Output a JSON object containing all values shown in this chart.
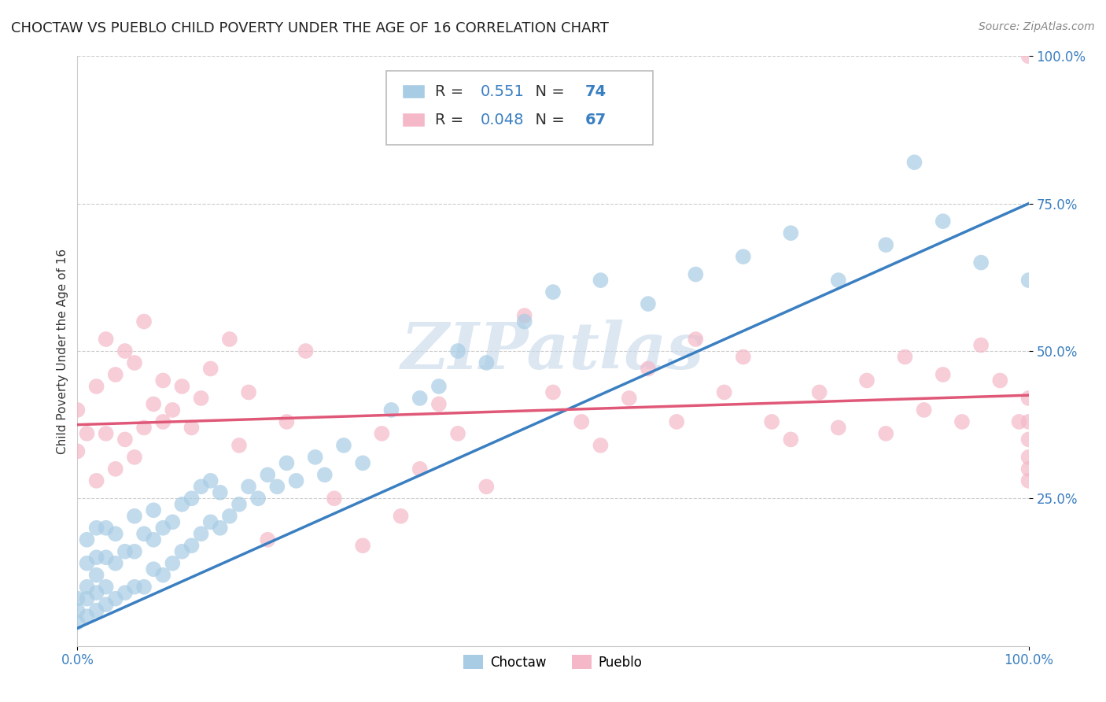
{
  "title": "CHOCTAW VS PUEBLO CHILD POVERTY UNDER THE AGE OF 16 CORRELATION CHART",
  "source": "Source: ZipAtlas.com",
  "ylabel": "Child Poverty Under the Age of 16",
  "choctaw_R": 0.551,
  "choctaw_N": 74,
  "pueblo_R": 0.048,
  "pueblo_N": 67,
  "choctaw_color": "#a8cce4",
  "pueblo_color": "#f4b8c8",
  "choctaw_line_color": "#3a7fc1",
  "pueblo_line_color": "#e05878",
  "background_color": "#ffffff",
  "watermark": "ZIPatlas",
  "watermark_color": "#c5d8ea",
  "xlim": [
    0,
    1
  ],
  "ylim": [
    0,
    1.0
  ],
  "choctaw_x": [
    0.0,
    0.0,
    0.0,
    0.01,
    0.01,
    0.01,
    0.01,
    0.01,
    0.02,
    0.02,
    0.02,
    0.02,
    0.02,
    0.03,
    0.03,
    0.03,
    0.03,
    0.04,
    0.04,
    0.04,
    0.05,
    0.05,
    0.06,
    0.06,
    0.06,
    0.07,
    0.07,
    0.08,
    0.08,
    0.08,
    0.09,
    0.09,
    0.1,
    0.1,
    0.11,
    0.11,
    0.12,
    0.12,
    0.13,
    0.13,
    0.14,
    0.14,
    0.15,
    0.15,
    0.16,
    0.17,
    0.18,
    0.19,
    0.2,
    0.21,
    0.22,
    0.23,
    0.25,
    0.26,
    0.28,
    0.3,
    0.33,
    0.36,
    0.38,
    0.4,
    0.43,
    0.47,
    0.5,
    0.55,
    0.6,
    0.65,
    0.7,
    0.75,
    0.8,
    0.85,
    0.88,
    0.91,
    0.95,
    1.0
  ],
  "choctaw_y": [
    0.04,
    0.06,
    0.08,
    0.05,
    0.08,
    0.1,
    0.14,
    0.18,
    0.06,
    0.09,
    0.12,
    0.15,
    0.2,
    0.07,
    0.1,
    0.15,
    0.2,
    0.08,
    0.14,
    0.19,
    0.09,
    0.16,
    0.1,
    0.16,
    0.22,
    0.1,
    0.19,
    0.13,
    0.18,
    0.23,
    0.12,
    0.2,
    0.14,
    0.21,
    0.16,
    0.24,
    0.17,
    0.25,
    0.19,
    0.27,
    0.21,
    0.28,
    0.2,
    0.26,
    0.22,
    0.24,
    0.27,
    0.25,
    0.29,
    0.27,
    0.31,
    0.28,
    0.32,
    0.29,
    0.34,
    0.31,
    0.4,
    0.42,
    0.44,
    0.5,
    0.48,
    0.55,
    0.6,
    0.62,
    0.58,
    0.63,
    0.66,
    0.7,
    0.62,
    0.68,
    0.82,
    0.72,
    0.65,
    0.62
  ],
  "pueblo_x": [
    0.0,
    0.0,
    0.01,
    0.02,
    0.02,
    0.03,
    0.03,
    0.04,
    0.04,
    0.05,
    0.05,
    0.06,
    0.06,
    0.07,
    0.07,
    0.08,
    0.09,
    0.09,
    0.1,
    0.11,
    0.12,
    0.13,
    0.14,
    0.16,
    0.17,
    0.18,
    0.2,
    0.22,
    0.24,
    0.27,
    0.3,
    0.32,
    0.34,
    0.36,
    0.38,
    0.4,
    0.43,
    0.47,
    0.5,
    0.53,
    0.55,
    0.58,
    0.6,
    0.63,
    0.65,
    0.68,
    0.7,
    0.73,
    0.75,
    0.78,
    0.8,
    0.83,
    0.85,
    0.87,
    0.89,
    0.91,
    0.93,
    0.95,
    0.97,
    0.99,
    1.0,
    1.0,
    1.0,
    1.0,
    1.0,
    1.0,
    1.0
  ],
  "pueblo_y": [
    0.33,
    0.4,
    0.36,
    0.28,
    0.44,
    0.36,
    0.52,
    0.3,
    0.46,
    0.35,
    0.5,
    0.32,
    0.48,
    0.37,
    0.55,
    0.41,
    0.45,
    0.38,
    0.4,
    0.44,
    0.37,
    0.42,
    0.47,
    0.52,
    0.34,
    0.43,
    0.18,
    0.38,
    0.5,
    0.25,
    0.17,
    0.36,
    0.22,
    0.3,
    0.41,
    0.36,
    0.27,
    0.56,
    0.43,
    0.38,
    0.34,
    0.42,
    0.47,
    0.38,
    0.52,
    0.43,
    0.49,
    0.38,
    0.35,
    0.43,
    0.37,
    0.45,
    0.36,
    0.49,
    0.4,
    0.46,
    0.38,
    0.51,
    0.45,
    0.38,
    1.0,
    0.35,
    0.3,
    0.42,
    0.38,
    0.32,
    0.28
  ],
  "choctaw_trend_x": [
    0.0,
    1.0
  ],
  "choctaw_trend_y": [
    0.03,
    0.75
  ],
  "pueblo_trend_x": [
    0.0,
    1.0
  ],
  "pueblo_trend_y": [
    0.375,
    0.425
  ],
  "figsize": [
    14.06,
    8.92
  ],
  "dpi": 100,
  "legend_R_color": "#3a7fc1",
  "legend_N_color": "#cc0000",
  "tick_label_color": "#3a7fc1"
}
